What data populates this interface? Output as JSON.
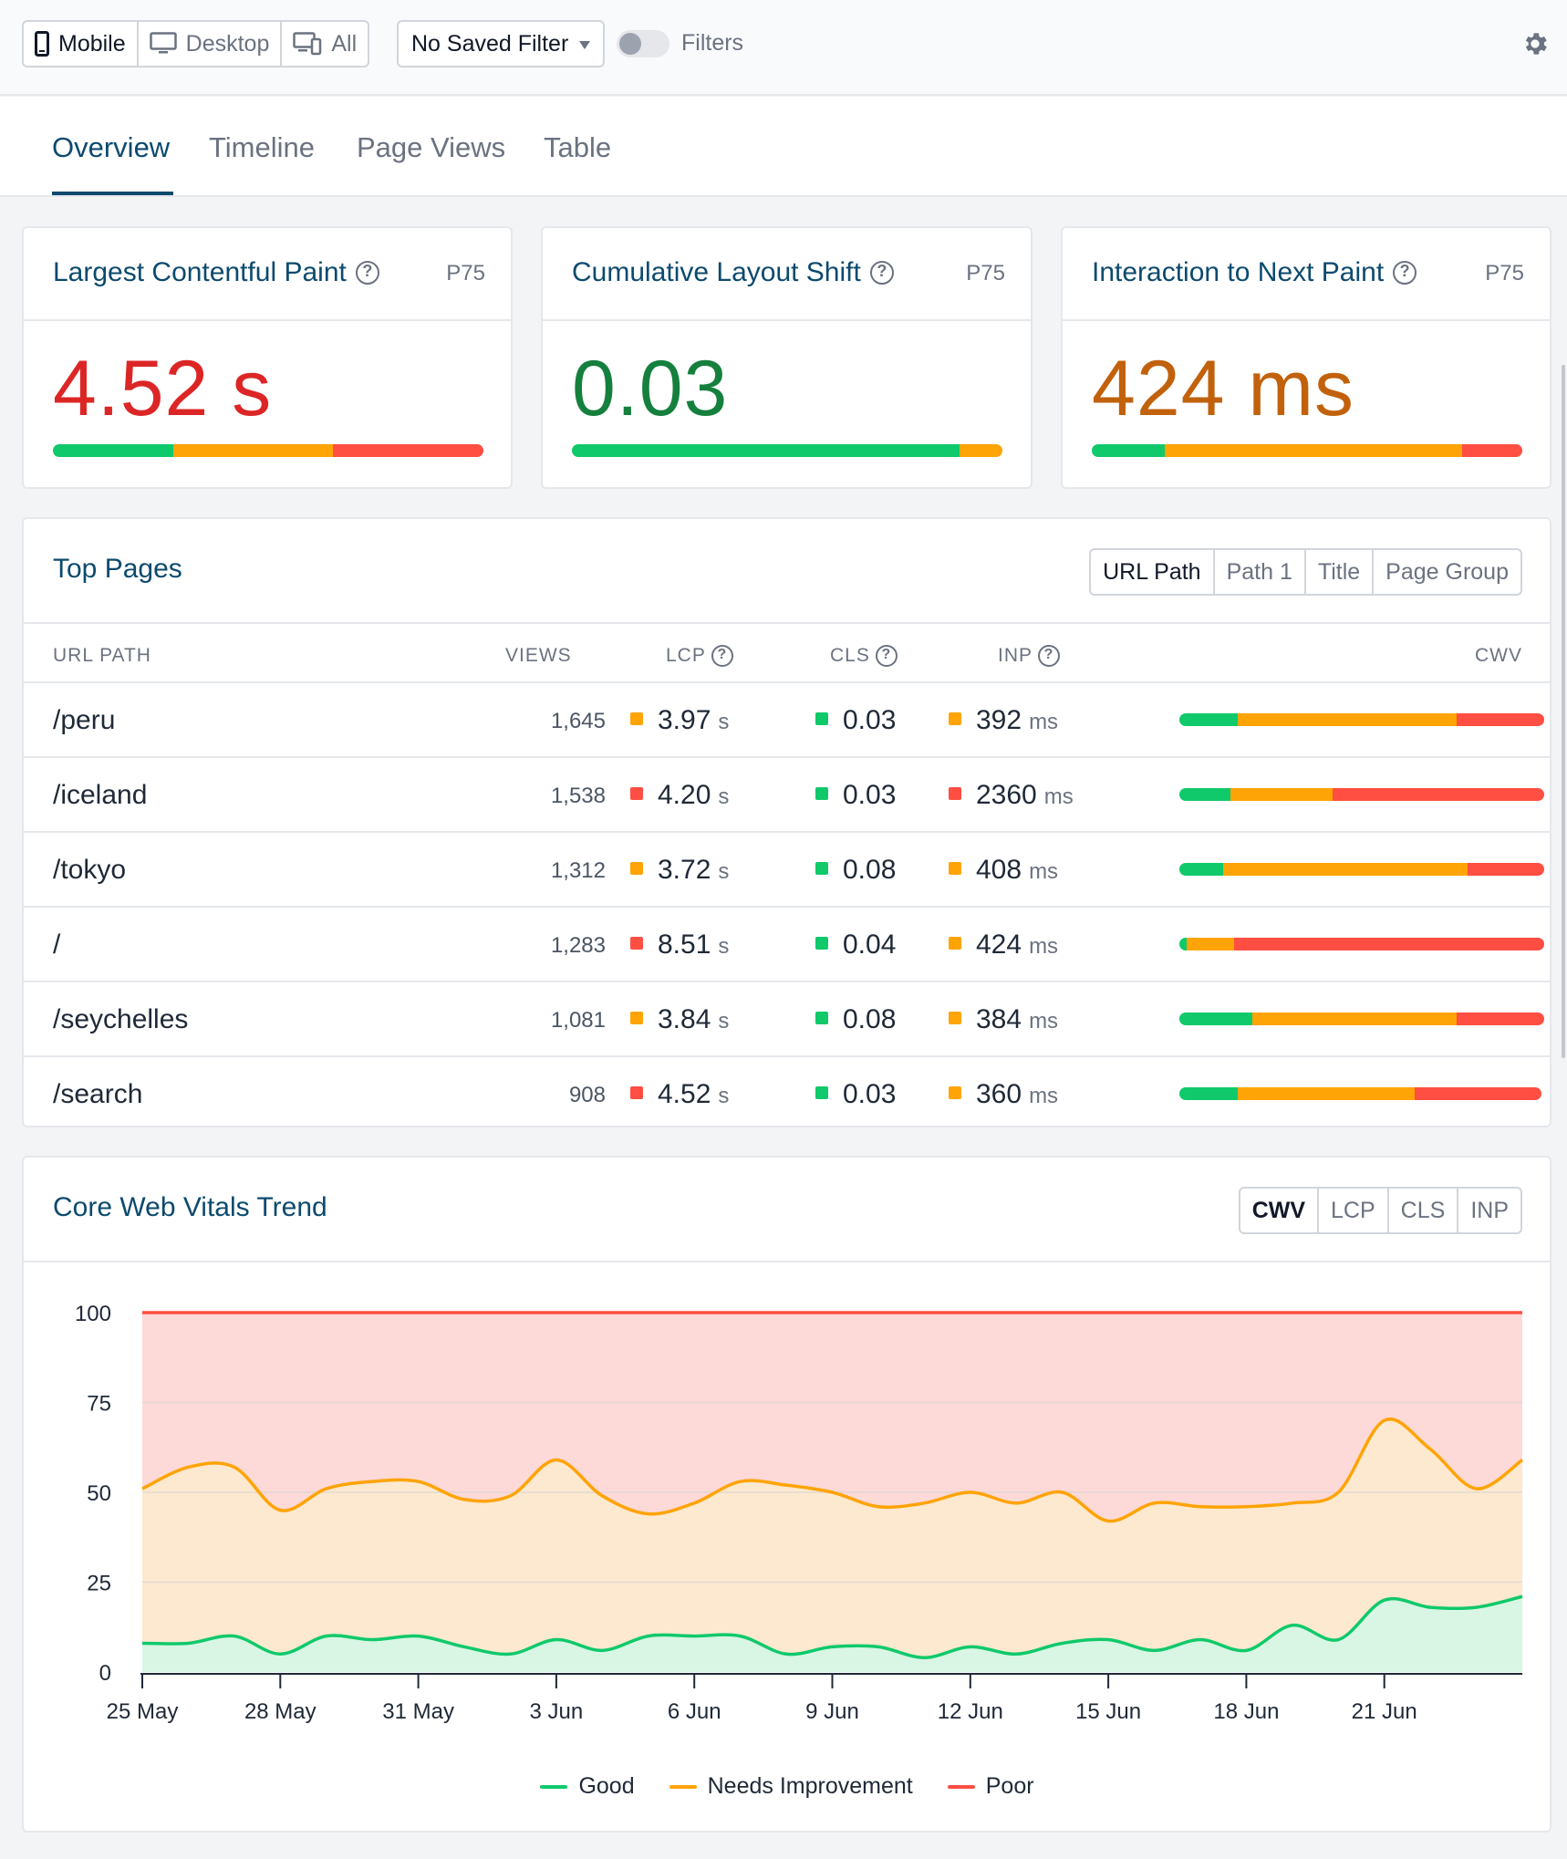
{
  "toolbar": {
    "devices": [
      {
        "label": "Mobile",
        "icon": "mobile-icon",
        "active": true
      },
      {
        "label": "Desktop",
        "icon": "desktop-icon",
        "active": false
      },
      {
        "label": "All",
        "icon": "all-devices-icon",
        "active": false
      }
    ],
    "saved_filter": "No Saved Filter",
    "filters_label": "Filters",
    "filters_enabled": false
  },
  "tabs": [
    "Overview",
    "Timeline",
    "Page Views",
    "Table"
  ],
  "active_tab": "Overview",
  "metrics": [
    {
      "title": "Largest Contentful Paint",
      "percentile": "P75",
      "value": "4.52 s",
      "color": "#dc2626",
      "distribution": {
        "good": 0.28,
        "needs_improvement": 0.37,
        "poor": 0.35
      }
    },
    {
      "title": "Cumulative Layout Shift",
      "percentile": "P75",
      "value": "0.03",
      "color": "#15803d",
      "distribution": {
        "good": 0.9,
        "needs_improvement": 0.1,
        "poor": 0.0
      }
    },
    {
      "title": "Interaction to Next Paint",
      "percentile": "P75",
      "value": "424 ms",
      "color": "#c2610c",
      "distribution": {
        "good": 0.17,
        "needs_improvement": 0.69,
        "poor": 0.14
      }
    }
  ],
  "top_pages": {
    "title": "Top Pages",
    "dimensions": [
      "URL Path",
      "Path 1",
      "Title",
      "Page Group"
    ],
    "active_dimension": "URL Path",
    "columns": {
      "path": "URL PATH",
      "views": "VIEWS",
      "lcp": "LCP",
      "cls": "CLS",
      "inp": "INP",
      "cwv": "CWV"
    },
    "rows": [
      {
        "path": "/peru",
        "views": "1,645",
        "lcp": "3.97",
        "lcp_unit": "s",
        "lcp_status": "orange",
        "cls": "0.03",
        "cls_status": "green",
        "inp": "392",
        "inp_unit": "ms",
        "inp_status": "orange",
        "cwv": {
          "good": 0.16,
          "needs_improvement": 0.6,
          "poor": 0.24
        }
      },
      {
        "path": "/iceland",
        "views": "1,538",
        "lcp": "4.20",
        "lcp_unit": "s",
        "lcp_status": "red",
        "cls": "0.03",
        "cls_status": "green",
        "inp": "2360",
        "inp_unit": "ms",
        "inp_status": "red",
        "cwv": {
          "good": 0.14,
          "needs_improvement": 0.28,
          "poor": 0.58
        }
      },
      {
        "path": "/tokyo",
        "views": "1,312",
        "lcp": "3.72",
        "lcp_unit": "s",
        "lcp_status": "orange",
        "cls": "0.08",
        "cls_status": "green",
        "inp": "408",
        "inp_unit": "ms",
        "inp_status": "orange",
        "cwv": {
          "good": 0.12,
          "needs_improvement": 0.67,
          "poor": 0.21
        }
      },
      {
        "path": "/",
        "views": "1,283",
        "lcp": "8.51",
        "lcp_unit": "s",
        "lcp_status": "red",
        "cls": "0.04",
        "cls_status": "green",
        "inp": "424",
        "inp_unit": "ms",
        "inp_status": "orange",
        "cwv": {
          "good": 0.02,
          "needs_improvement": 0.13,
          "poor": 0.85
        }
      },
      {
        "path": "/seychelles",
        "views": "1,081",
        "lcp": "3.84",
        "lcp_unit": "s",
        "lcp_status": "orange",
        "cls": "0.08",
        "cls_status": "green",
        "inp": "384",
        "inp_unit": "ms",
        "inp_status": "orange",
        "cwv": {
          "good": 0.2,
          "needs_improvement": 0.56,
          "poor": 0.24
        }
      },
      {
        "path": "/search",
        "views": "908",
        "lcp": "4.52",
        "lcp_unit": "s",
        "lcp_status": "red",
        "cls": "0.03",
        "cls_status": "green",
        "inp": "360",
        "inp_unit": "ms",
        "inp_status": "orange",
        "cwv": {
          "good": 0.16,
          "needs_improvement": 0.49,
          "poor": 0.35
        }
      }
    ]
  },
  "trend": {
    "title": "Core Web Vitals Trend",
    "modes": [
      "CWV",
      "LCP",
      "CLS",
      "INP"
    ],
    "active_mode": "CWV"
  },
  "colors": {
    "good": "#10c96b",
    "needs_improvement": "#ffa406",
    "poor": "#ff4e42",
    "accent": "#0c4a6e"
  },
  "chart_data": {
    "type": "area",
    "stacked": true,
    "title": "",
    "xlabel": "",
    "ylabel": "",
    "ylim": [
      0,
      100
    ],
    "yticks": [
      0,
      25,
      50,
      75,
      100
    ],
    "xtick_labels": [
      "25 May",
      "28 May",
      "31 May",
      "3 Jun",
      "6 Jun",
      "9 Jun",
      "12 Jun",
      "15 Jun",
      "18 Jun",
      "21 Jun"
    ],
    "x": [
      "25 May",
      "26 May",
      "27 May",
      "28 May",
      "29 May",
      "30 May",
      "31 May",
      "1 Jun",
      "2 Jun",
      "3 Jun",
      "4 Jun",
      "5 Jun",
      "6 Jun",
      "7 Jun",
      "8 Jun",
      "9 Jun",
      "10 Jun",
      "11 Jun",
      "12 Jun",
      "13 Jun",
      "14 Jun",
      "15 Jun",
      "16 Jun",
      "17 Jun",
      "18 Jun",
      "19 Jun",
      "20 Jun",
      "21 Jun",
      "22 Jun",
      "23 Jun",
      "24 Jun"
    ],
    "legend": {
      "position": "bottom"
    },
    "grid": true,
    "series": [
      {
        "name": "Good",
        "color": "#10c96b",
        "values": [
          8,
          8,
          10,
          5,
          10,
          9,
          10,
          7,
          5,
          9,
          6,
          10,
          10,
          10,
          5,
          7,
          7,
          4,
          7,
          5,
          8,
          9,
          6,
          9,
          6,
          13,
          9,
          20,
          18,
          18,
          21
        ]
      },
      {
        "name": "Needs Improvement",
        "color": "#ffa406",
        "values": [
          51,
          57,
          57,
          45,
          51,
          53,
          53,
          48,
          49,
          59,
          49,
          44,
          47,
          53,
          52,
          50,
          46,
          47,
          50,
          47,
          50,
          42,
          47,
          46,
          46,
          47,
          50,
          70,
          62,
          51,
          59
        ]
      },
      {
        "name": "Poor",
        "color": "#ff4e42",
        "values": [
          100,
          100,
          100,
          100,
          100,
          100,
          100,
          100,
          100,
          100,
          100,
          100,
          100,
          100,
          100,
          100,
          100,
          100,
          100,
          100,
          100,
          100,
          100,
          100,
          100,
          100,
          100,
          100,
          100,
          100,
          100
        ]
      }
    ]
  }
}
